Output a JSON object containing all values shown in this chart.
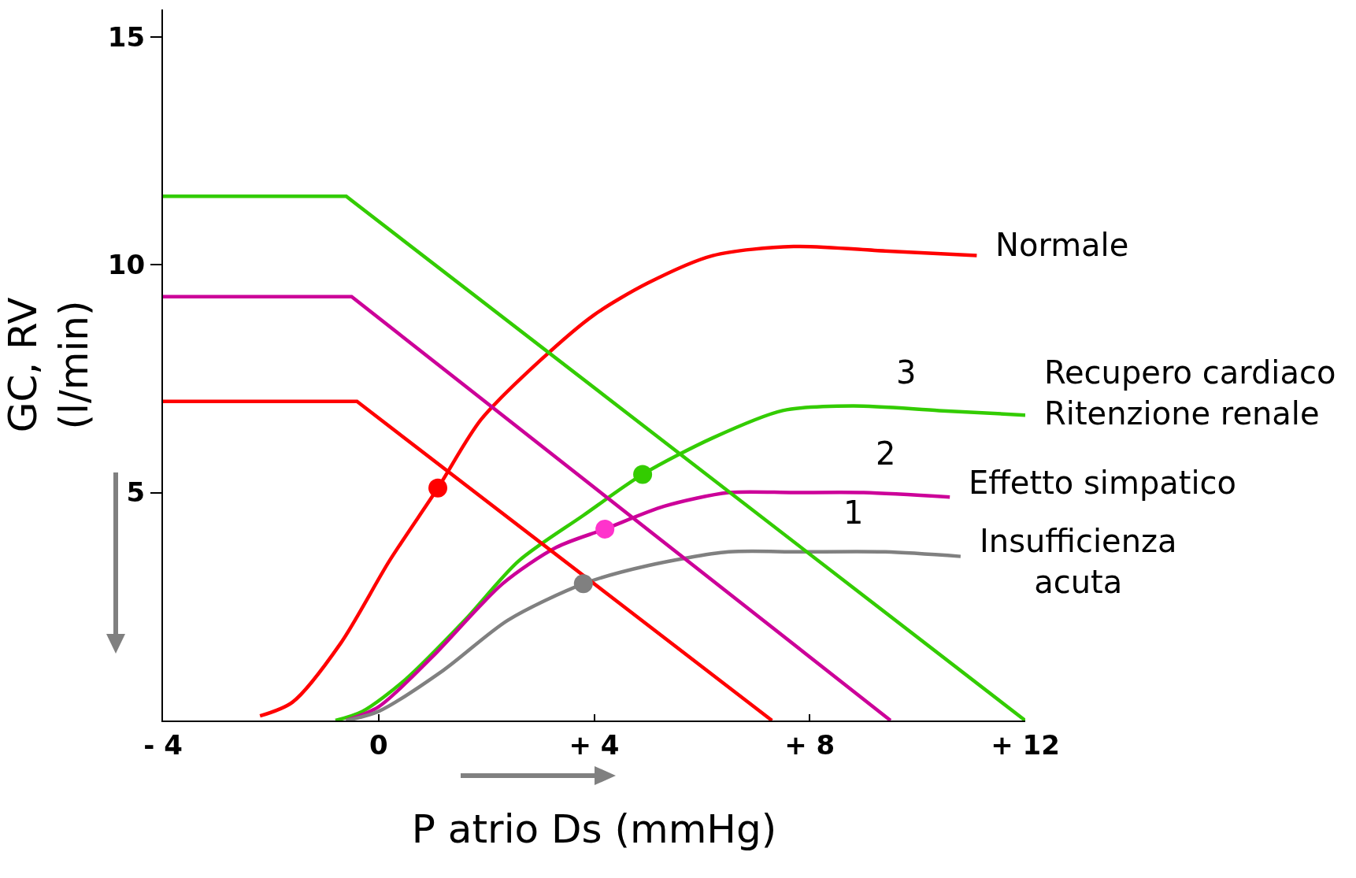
{
  "chart_data": {
    "type": "line",
    "xlabel": "P atrio Ds (mmHg)",
    "ylabel": "GC, RV\n(l/min)",
    "xlim": [
      -4,
      12
    ],
    "xticks": [
      {
        "value": -4,
        "label": "- 4"
      },
      0,
      {
        "value": 4,
        "label": "+ 4"
      },
      {
        "value": 8,
        "label": "+ 8"
      },
      {
        "value": 12,
        "label": "+ 12"
      }
    ],
    "ylim": [
      0,
      15.6
    ],
    "yticks": [
      5,
      10,
      15
    ],
    "grid": false,
    "legend": false,
    "line_style": "solid",
    "series": [
      {
        "name": "Normale",
        "color": "#ff0000",
        "x": [
          -2.2,
          -1.6,
          -0.7,
          0.2,
          1.1,
          1.9,
          3.0,
          4.0,
          5.0,
          6.2,
          7.7,
          9.4,
          11.1
        ],
        "values": [
          0.1,
          0.4,
          1.7,
          3.5,
          5.1,
          6.6,
          7.9,
          8.9,
          9.6,
          10.2,
          10.4,
          10.3,
          10.2
        ]
      },
      {
        "name": "Recupero cardiaco\nRitenzione renale",
        "color": "#33cc00",
        "x": [
          -0.8,
          -0.3,
          0.5,
          1.6,
          2.6,
          3.8,
          4.9,
          6.2,
          7.5,
          8.8,
          10.4,
          12.0
        ],
        "values": [
          0,
          0.2,
          0.9,
          2.2,
          3.5,
          4.5,
          5.4,
          6.2,
          6.8,
          6.9,
          6.8,
          6.7
        ]
      },
      {
        "name": "Effetto simpatico",
        "color": "#cc0099",
        "x": [
          -0.6,
          0,
          1.0,
          2.3,
          3.3,
          4.2,
          5.3,
          6.5,
          7.7,
          9.0,
          10.6
        ],
        "values": [
          0,
          0.3,
          1.4,
          3.0,
          3.8,
          4.2,
          4.7,
          5.0,
          5.0,
          5.0,
          4.9
        ]
      },
      {
        "name": "Insufficienza\nacuta",
        "color": "#808080",
        "x": [
          -0.6,
          0,
          1.2,
          2.4,
          3.8,
          5.0,
          6.5,
          7.8,
          9.4,
          10.8
        ],
        "values": [
          0,
          0.2,
          1.1,
          2.2,
          3.0,
          3.4,
          3.7,
          3.7,
          3.7,
          3.6
        ]
      },
      {
        "color": "#ff0000",
        "x": [
          -4,
          -0.4,
          7.3
        ],
        "values": [
          7.0,
          7.0,
          0
        ]
      },
      {
        "color": "#cc0099",
        "x": [
          -4,
          -0.5,
          9.5
        ],
        "values": [
          9.3,
          9.3,
          0
        ]
      },
      {
        "color": "#33cc00",
        "x": [
          -4,
          -0.6,
          12
        ],
        "values": [
          11.5,
          11.5,
          0
        ]
      },
      {
        "type": "scatter",
        "marker": "circle",
        "colors": [
          "#ff0000",
          "#33cc00",
          "#ff33cc",
          "#808080"
        ],
        "x": [
          1.1,
          4.9,
          4.2,
          3.8
        ],
        "values": [
          5.1,
          5.4,
          4.2,
          3.0
        ]
      }
    ],
    "annotations": [
      "3",
      "2",
      "1"
    ]
  }
}
